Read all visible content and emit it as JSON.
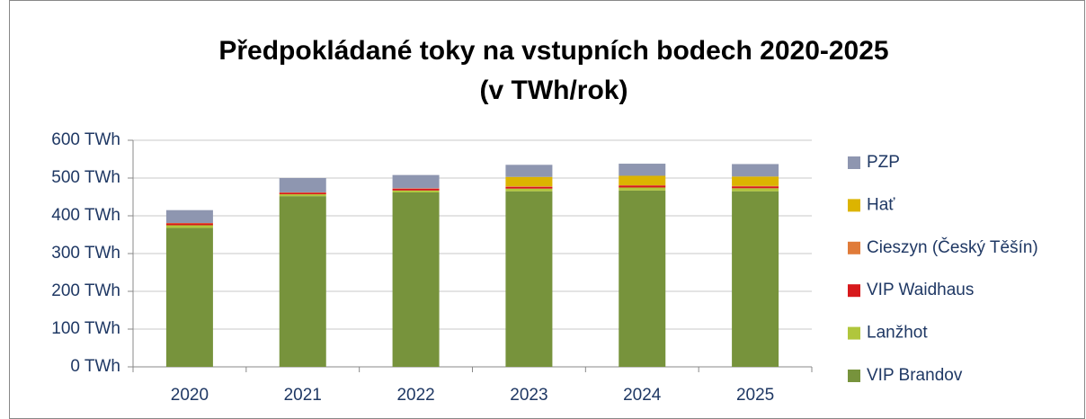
{
  "chart_data": {
    "type": "stacked_bar",
    "title": "Předpokládané toky na vstupních bodech 2020-2025",
    "subtitle": "(v TWh/rok)",
    "categories": [
      "2020",
      "2021",
      "2022",
      "2023",
      "2024",
      "2025"
    ],
    "series": [
      {
        "name": "VIP Brandov",
        "color": "#77933c",
        "values": [
          368,
          452,
          462,
          465,
          467,
          465
        ]
      },
      {
        "name": "Lanžhot",
        "color": "#b0c63c",
        "values": [
          7,
          5,
          5,
          7,
          8,
          8
        ]
      },
      {
        "name": "VIP Waidhaus",
        "color": "#d7191c",
        "values": [
          5,
          4,
          5,
          5,
          5,
          5
        ]
      },
      {
        "name": "Cieszyn (Český Těšín)",
        "color": "#e07b39",
        "values": [
          1,
          1,
          1,
          1,
          1,
          1
        ]
      },
      {
        "name": "Hať",
        "color": "#dcb400",
        "values": [
          0,
          0,
          0,
          25,
          25,
          25
        ]
      },
      {
        "name": "PZP",
        "color": "#8e96b0",
        "values": [
          34,
          38,
          35,
          32,
          32,
          33
        ]
      }
    ],
    "ylim": [
      0,
      600
    ],
    "yticks": [
      {
        "value": 0,
        "label": "0 TWh"
      },
      {
        "value": 100,
        "label": "100 TWh"
      },
      {
        "value": 200,
        "label": "200 TWh"
      },
      {
        "value": 300,
        "label": "300 TWh"
      },
      {
        "value": 400,
        "label": "400 TWh"
      },
      {
        "value": 500,
        "label": "500 TWh"
      },
      {
        "value": 600,
        "label": "600 TWh"
      }
    ],
    "grid": true,
    "legend": "right"
  }
}
